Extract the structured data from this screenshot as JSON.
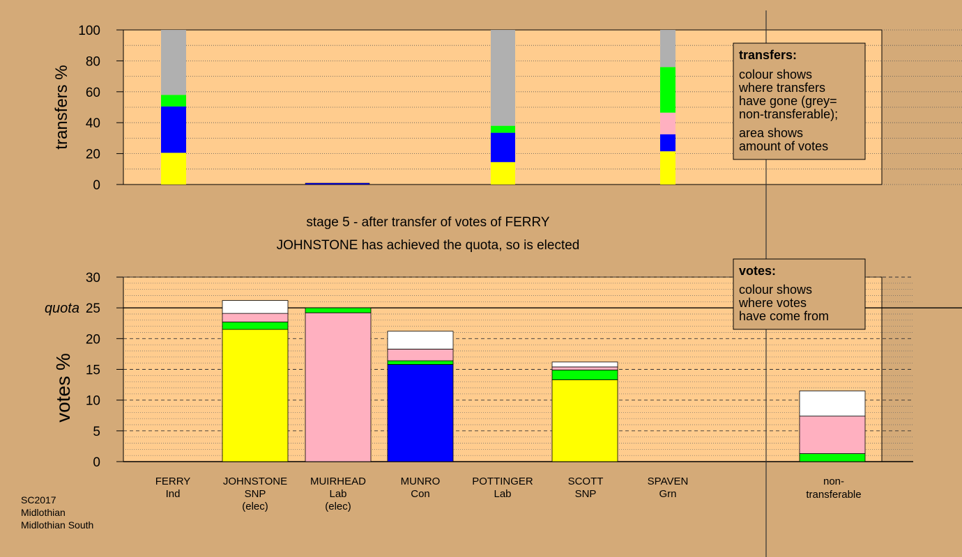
{
  "chart_data": [
    {
      "type": "bar",
      "stacked": true,
      "ylabel": "transfers %",
      "ylim": [
        0,
        100
      ],
      "yticks": [
        0,
        20,
        40,
        60,
        80,
        100
      ],
      "grid": "dotted horizontal",
      "segment_order": [
        "SNP",
        "Con",
        "Lab",
        "Grn",
        "non-transferable"
      ],
      "bars": [
        {
          "candidate": "FERRY",
          "segments": {
            "SNP": 20.5,
            "Con": 30,
            "Lab": 0,
            "Grn": 7.5,
            "non-transferable": 42
          }
        },
        {
          "candidate": "MUIRHEAD",
          "segments": {
            "SNP": 0,
            "Con": 0,
            "Lab": 0,
            "Grn": 0,
            "non-transferable": 0
          },
          "marker": "thin line at 0"
        },
        {
          "candidate": "POTTINGER",
          "segments": {
            "SNP": 14.5,
            "Con": 19,
            "Lab": 0,
            "Grn": 4.5,
            "non-transferable": 62
          }
        },
        {
          "candidate": "SPAVEN",
          "segments": {
            "SNP": 21.5,
            "Con": 11,
            "Lab": 14,
            "Grn": 29.5,
            "non-transferable": 24
          }
        }
      ]
    },
    {
      "type": "bar",
      "stacked": true,
      "ylabel": "votes %",
      "ylim": [
        0,
        30
      ],
      "yticks": [
        0,
        5,
        10,
        15,
        20,
        25,
        30
      ],
      "quota": 25,
      "quota_label": "quota",
      "grid": "dashed at 5s, dotted at 1s",
      "segment_order": [
        "own",
        "Grn",
        "Lab",
        "other"
      ],
      "bars": [
        {
          "candidate": "JOHNSTONE",
          "own": {
            "value": 21.5,
            "color": "#ffff00"
          },
          "Grn": 1.2,
          "Lab": 1.4,
          "other": 2.1
        },
        {
          "candidate": "MUIRHEAD",
          "own": {
            "value": 24.2,
            "color": "#ffb0c0"
          },
          "Grn": 0.8,
          "Lab": 0,
          "other": 0
        },
        {
          "candidate": "MUNRO",
          "own": {
            "value": 15.8,
            "color": "#0000ff"
          },
          "Grn": 0.6,
          "Lab": 1.9,
          "other": 2.9
        },
        {
          "candidate": "SCOTT",
          "own": {
            "value": 13.3,
            "color": "#ffff00"
          },
          "Grn": 1.6,
          "Lab": 0.5,
          "other": 0.8
        },
        {
          "candidate": "non-transferable",
          "own": {
            "value": 0,
            "color": "#ffffff"
          },
          "Grn": 1.3,
          "Lab": 6.1,
          "other": 4.1
        }
      ]
    }
  ],
  "colors": {
    "background": "#d4aa78",
    "plot_bg": "#ffcc8e",
    "SNP": "#ffff00",
    "Con": "#0000ff",
    "Lab": "#ffb0c0",
    "Grn": "#00ff00",
    "non-transferable": "#b0b0b0",
    "other": "#ffffff"
  },
  "top_axis": {
    "ylabel": "transfers %",
    "ticks": [
      "0",
      "20",
      "40",
      "60",
      "80",
      "100"
    ]
  },
  "bottom_axis": {
    "ylabel": "votes %",
    "ticks": [
      "0",
      "5",
      "10",
      "15",
      "20",
      "25",
      "30"
    ],
    "quota_label": "quota"
  },
  "stage_title": "stage 5 - after transfer of votes of FERRY",
  "stage_subtitle": "JOHNSTONE has achieved the quota, so is elected",
  "legend_transfers": {
    "title": "transfers:",
    "lines1": [
      "colour shows",
      "where transfers",
      "have gone (grey=",
      "non-transferable);"
    ],
    "lines2": [
      "area shows",
      "amount of votes"
    ]
  },
  "legend_votes": {
    "title": "votes:",
    "lines": [
      "colour shows",
      "where votes",
      "have come from"
    ]
  },
  "candidates": [
    {
      "name": "FERRY",
      "party": "Ind",
      "status": ""
    },
    {
      "name": "JOHNSTONE",
      "party": "SNP",
      "status": "(elec)"
    },
    {
      "name": "MUIRHEAD",
      "party": "Lab",
      "status": "(elec)"
    },
    {
      "name": "MUNRO",
      "party": "Con",
      "status": ""
    },
    {
      "name": "POTTINGER",
      "party": "Lab",
      "status": ""
    },
    {
      "name": "SCOTT",
      "party": "SNP",
      "status": ""
    },
    {
      "name": "SPAVEN",
      "party": "Grn",
      "status": ""
    }
  ],
  "nontransferable_label": [
    "non-",
    "transferable"
  ],
  "footer": [
    "SC2017",
    "Midlothian",
    "Midlothian South"
  ]
}
